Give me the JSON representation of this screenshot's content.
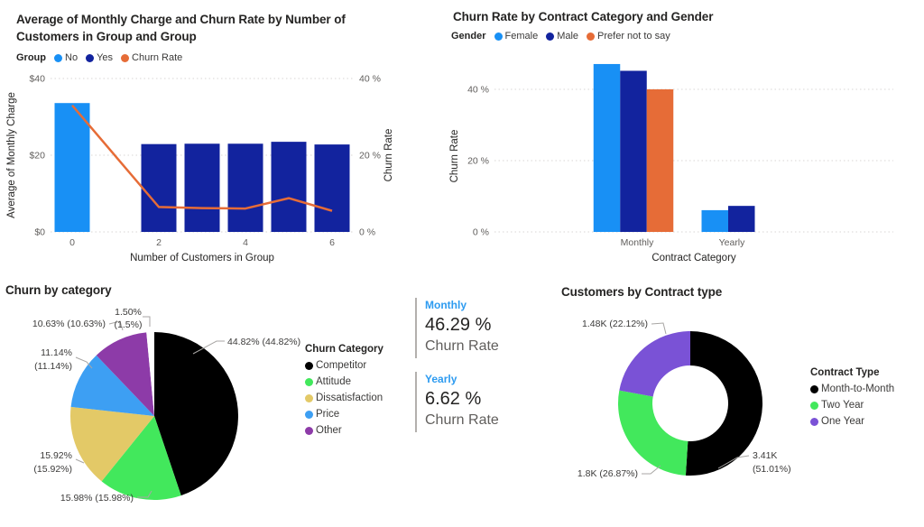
{
  "kpi_accent": "#2D9BF0",
  "kpi_cards": [
    {
      "label": "Monthly",
      "value": "46.29 %",
      "caption": "Churn Rate"
    },
    {
      "label": "Yearly",
      "value": "6.62 %",
      "caption": "Churn Rate"
    }
  ],
  "chart_data": [
    {
      "type": "combo-bar-line",
      "title": "Average of Monthly Charge and Churn Rate by Number of Customers in Group and Group",
      "legend_title": "Group",
      "legend": [
        {
          "label": "No",
          "color": "#1890F5"
        },
        {
          "label": "Yes",
          "color": "#12239E"
        },
        {
          "label": "Churn Rate",
          "color": "#E66C37"
        }
      ],
      "xlabel": "Number of Customers in Group",
      "ylabel_left": "Average of Monthly Charge",
      "ylabel_right": "Churn Rate",
      "x_ticks": [
        0,
        2,
        4,
        6
      ],
      "left_axis": {
        "max": 40,
        "tick_values": [
          0,
          20,
          40
        ],
        "tick_labels": [
          "$0",
          "$20",
          "$40"
        ]
      },
      "right_axis": {
        "max": 40,
        "tick_values": [
          0,
          20,
          40
        ],
        "tick_labels": [
          "0 %",
          "20 %",
          "40 %"
        ]
      },
      "bars": [
        {
          "x": 0,
          "value": 33.6,
          "series": "No"
        },
        {
          "x": 2,
          "value": 22.9,
          "series": "Yes"
        },
        {
          "x": 3,
          "value": 23.0,
          "series": "Yes"
        },
        {
          "x": 4,
          "value": 23.0,
          "series": "Yes"
        },
        {
          "x": 5,
          "value": 23.5,
          "series": "Yes"
        },
        {
          "x": 6,
          "value": 22.8,
          "series": "Yes"
        }
      ],
      "line": {
        "name": "Churn Rate",
        "points": [
          [
            0,
            33
          ],
          [
            2,
            6.5
          ],
          [
            3,
            6.2
          ],
          [
            4,
            6.1
          ],
          [
            5,
            8.8
          ],
          [
            6,
            5.5
          ]
        ]
      }
    },
    {
      "type": "bar",
      "title": "Churn Rate by Contract Category and Gender",
      "legend_title": "Gender",
      "categories": [
        "Monthly",
        "Yearly"
      ],
      "series": [
        {
          "name": "Female",
          "color": "#1890F5",
          "values": [
            47.1,
            6.1
          ]
        },
        {
          "name": "Male",
          "color": "#12239E",
          "values": [
            45.2,
            7.3
          ]
        },
        {
          "name": "Prefer not to say",
          "color": "#E66C37",
          "values": [
            40.0,
            null
          ]
        }
      ],
      "xlabel": "Contract Category",
      "ylabel": "Churn Rate",
      "ylim": [
        0,
        40
      ],
      "ytick_values": [
        0,
        20,
        40
      ],
      "ytick_labels": [
        "0 %",
        "20 %",
        "40 %"
      ]
    },
    {
      "type": "pie",
      "title": "Churn by category",
      "legend_title": "Churn Category",
      "slices": [
        {
          "label": "Competitor",
          "color": "#000000",
          "value": 44.82,
          "callout": [
            "44.82% (44.82%)"
          ],
          "in_legend": true
        },
        {
          "label": "Attitude",
          "color": "#42E85C",
          "value": 15.98,
          "callout": [
            "15.98% (15.98%)"
          ],
          "in_legend": true
        },
        {
          "label": "Dissatisfaction",
          "color": "#E3C967",
          "value": 15.92,
          "callout": [
            "15.92%",
            "(15.92%)"
          ],
          "in_legend": true
        },
        {
          "label": "Price",
          "color": "#3D9FF3",
          "value": 11.14,
          "callout": [
            "11.14%",
            "(11.14%)"
          ],
          "in_legend": true
        },
        {
          "label": "Other",
          "color": "#8D3BA8",
          "value": 10.63,
          "callout": [
            "10.63% (10.63%)"
          ],
          "in_legend": true
        },
        {
          "label": "",
          "color": "#FFFFFF",
          "value": 1.5,
          "callout": [
            "1.50%",
            "(1.5%)"
          ],
          "in_legend": false
        }
      ]
    },
    {
      "type": "donut",
      "title": "Customers by Contract type",
      "legend_title": "Contract Type",
      "slices": [
        {
          "label": "Month-to-Month",
          "color": "#000000",
          "value": 51.01,
          "callout": [
            "3.41K",
            "(51.01%)"
          ],
          "in_legend": true
        },
        {
          "label": "Two Year",
          "color": "#42E85C",
          "value": 26.87,
          "callout": [
            "1.8K (26.87%)"
          ],
          "in_legend": true
        },
        {
          "label": "One Year",
          "color": "#7A52D6",
          "value": 22.12,
          "callout": [
            "1.48K (22.12%)"
          ],
          "in_legend": true
        }
      ]
    }
  ]
}
